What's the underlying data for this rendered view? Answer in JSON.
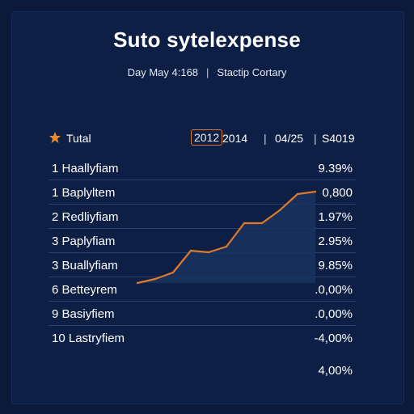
{
  "title": "Suto sytelexpense",
  "subtitle": {
    "date": "Day May 4:168",
    "company": "Stactip Cortary"
  },
  "header": {
    "total_label": "Tutal",
    "year_a": "2012",
    "year_b": "2014",
    "period": "04/25",
    "amount": "S4019"
  },
  "rows": [
    {
      "label": "1 Haallyfiam",
      "value": "9.39%"
    },
    {
      "label": "1 Baplyltem",
      "value": "0,800"
    },
    {
      "label": "2 Redliyfiam",
      "value": "1.97%"
    },
    {
      "label": "3 Paplyfiam",
      "value": "2.95%"
    },
    {
      "label": "3 Buallyfiam",
      "value": "9.85%"
    },
    {
      "label": "6 Betteyrem",
      "value": ".0,00%"
    },
    {
      "label": "9 Basiyfiem",
      "value": ".0,00%"
    },
    {
      "label": "10 Lastryfiem",
      "value": "-4,00%"
    }
  ],
  "footer_value": "4,00%",
  "colors": {
    "background": "#0b1a3a",
    "accent": "#e07a2a",
    "area_fill": "#17345f"
  },
  "chart_data": {
    "type": "area",
    "x": [
      1,
      2,
      3,
      4,
      5,
      6,
      7,
      8,
      9,
      10,
      11
    ],
    "values": [
      0.0,
      0.5,
      1.3,
      4.0,
      3.8,
      4.5,
      7.4,
      7.4,
      9.0,
      11.0,
      11.3
    ],
    "ylim": [
      0,
      12
    ]
  }
}
